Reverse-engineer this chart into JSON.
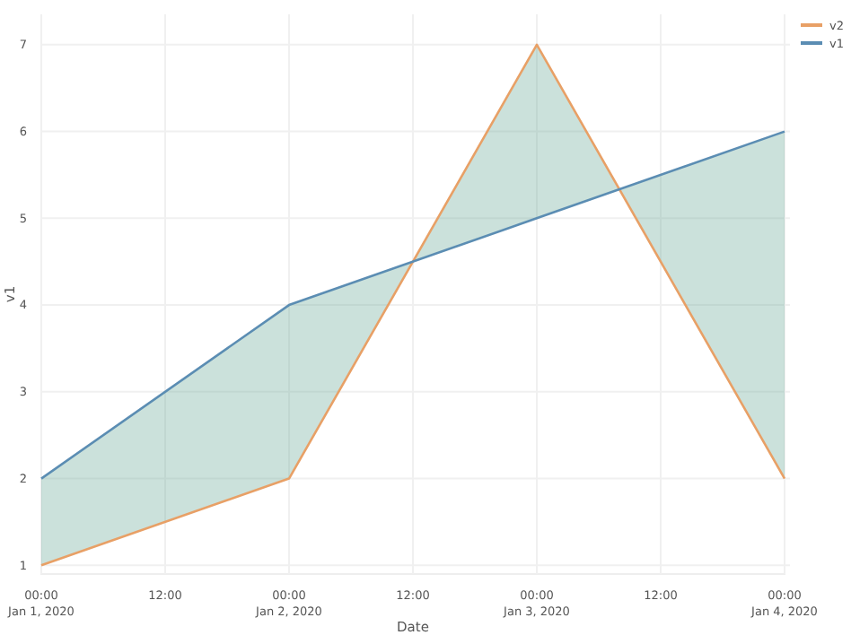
{
  "chart_data": {
    "type": "line",
    "xlabel": "Date",
    "ylabel": "v1",
    "x": [
      "2020-01-01T00:00",
      "2020-01-02T00:00",
      "2020-01-03T00:00",
      "2020-01-04T00:00"
    ],
    "series": [
      {
        "name": "v2",
        "color": "#e8a066",
        "values": [
          1,
          2,
          7,
          2
        ],
        "lower": [
          2,
          4,
          5,
          6
        ],
        "upper": [
          1,
          2,
          7,
          2
        ]
      },
      {
        "name": "v1",
        "color": "#5b8db3",
        "values": [
          2,
          4,
          5,
          6
        ]
      }
    ],
    "xlim": [
      "2020-01-01T00:00",
      "2020-01-04T00:00"
    ],
    "xticks": [
      {
        "value": "2020-01-01T00:00",
        "label": "00:00\nJan 1, 2020"
      },
      {
        "value": "2020-01-01T12:00",
        "label": "12:00"
      },
      {
        "value": "2020-01-02T00:00",
        "label": "00:00\nJan 2, 2020"
      },
      {
        "value": "2020-01-02T12:00",
        "label": "12:00"
      },
      {
        "value": "2020-01-03T00:00",
        "label": "00:00\nJan 3, 2020"
      },
      {
        "value": "2020-01-03T12:00",
        "label": "12:00"
      },
      {
        "value": "2020-01-04T00:00",
        "label": "00:00\nJan 4, 2020"
      }
    ],
    "ylim": [
      0.9,
      7.35
    ],
    "yticks": [
      1,
      2,
      3,
      4,
      5,
      6,
      7
    ],
    "grid": true,
    "legend": "top right",
    "marker": "none",
    "line_style": "solid"
  }
}
